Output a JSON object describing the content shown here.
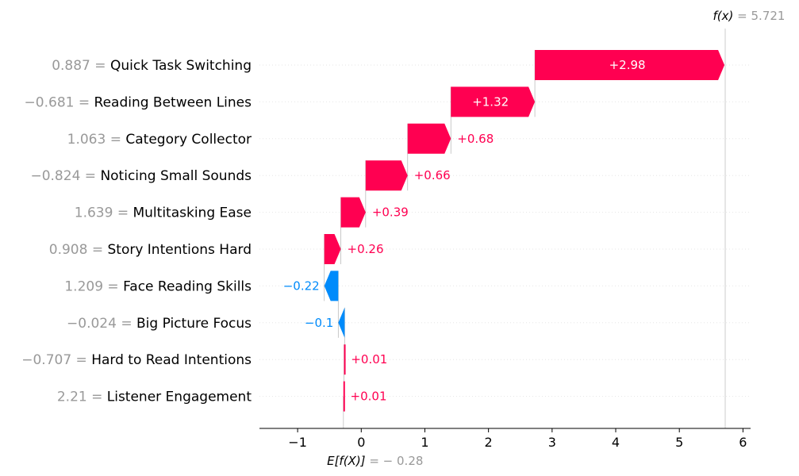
{
  "chart_data": {
    "type": "waterfall",
    "fx_label": "f(x)",
    "fx_value": "5.721",
    "base_label": "E[f(X)]",
    "base_value": "− 0.28",
    "base": -0.281,
    "final": 5.721,
    "xlim": [
      -1.6,
      6.12
    ],
    "x_ticks": [
      -1,
      0,
      1,
      2,
      3,
      4,
      5,
      6
    ],
    "x_tick_labels": [
      "−1",
      "0",
      "1",
      "2",
      "3",
      "4",
      "5",
      "6"
    ],
    "grid": "horizontal dotted",
    "colors": {
      "positive": "#ff0051",
      "negative": "#008bfb",
      "value_text": "#999999"
    },
    "features": [
      {
        "value": "0.887",
        "name": "Quick Task Switching",
        "contribution": 2.98,
        "label": "+2.98"
      },
      {
        "value": "−0.681",
        "name": "Reading Between Lines",
        "contribution": 1.32,
        "label": "+1.32"
      },
      {
        "value": "1.063",
        "name": "Category Collector",
        "contribution": 0.68,
        "label": "+0.68"
      },
      {
        "value": "−0.824",
        "name": "Noticing Small Sounds",
        "contribution": 0.66,
        "label": "+0.66"
      },
      {
        "value": "1.639",
        "name": "Multitasking Ease",
        "contribution": 0.39,
        "label": "+0.39"
      },
      {
        "value": "0.908",
        "name": "Story Intentions Hard",
        "contribution": 0.26,
        "label": "+0.26"
      },
      {
        "value": "1.209",
        "name": "Face Reading Skills",
        "contribution": -0.22,
        "label": "−0.22"
      },
      {
        "value": "−0.024",
        "name": "Big Picture Focus",
        "contribution": -0.1,
        "label": "−0.1"
      },
      {
        "value": "−0.707",
        "name": "Hard to Read Intentions",
        "contribution": 0.01,
        "label": "+0.01"
      },
      {
        "value": "2.21",
        "name": "Listener Engagement",
        "contribution": 0.01,
        "label": "+0.01"
      }
    ]
  }
}
